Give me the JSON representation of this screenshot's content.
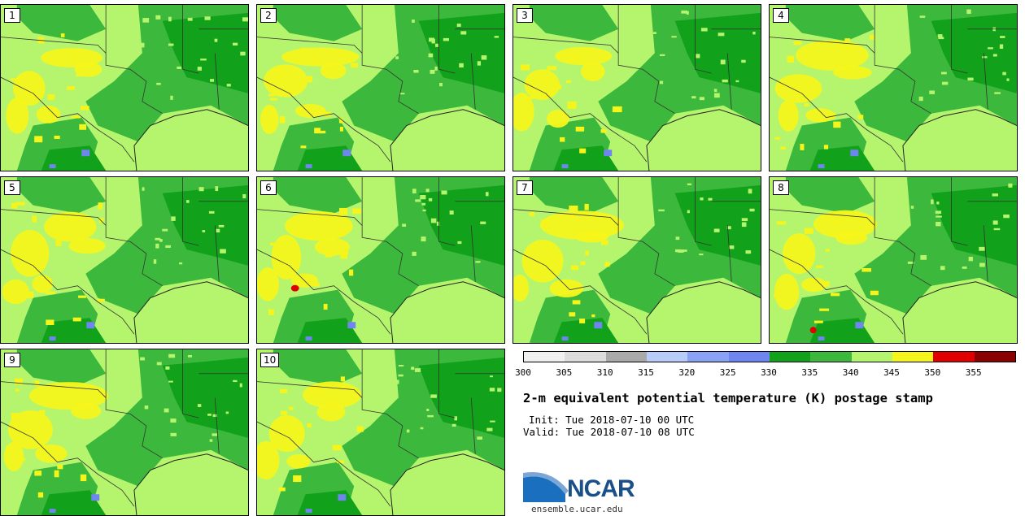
{
  "members": [
    "1",
    "2",
    "3",
    "4",
    "5",
    "6",
    "7",
    "8",
    "9",
    "10"
  ],
  "colorbar": {
    "colors": [
      "#f0f0f0",
      "#dcdcdc",
      "#a9a9a9",
      "#b8ccfa",
      "#8aa2f5",
      "#6f86f0",
      "#11a11a",
      "#3cb83c",
      "#b5f56e",
      "#f5f51b",
      "#e00000",
      "#8b0000"
    ],
    "ticks": [
      "300",
      "305",
      "310",
      "315",
      "320",
      "325",
      "330",
      "335",
      "340",
      "345",
      "350",
      "355"
    ]
  },
  "title": "2-m equivalent potential temperature (K) postage stamp",
  "init": "Init: Tue 2018-07-10 00 UTC",
  "valid": "Valid: Tue 2018-07-10 08 UTC",
  "logo": {
    "text": "NCAR",
    "url_text": "ensemble.ucar.edu"
  },
  "map_colors": {
    "land_light": "#b5f56e",
    "land_mid": "#3cb83c",
    "land_dark": "#11a11a",
    "warm": "#f5f51b",
    "hot": "#e00000",
    "water": "#6f86f0"
  }
}
